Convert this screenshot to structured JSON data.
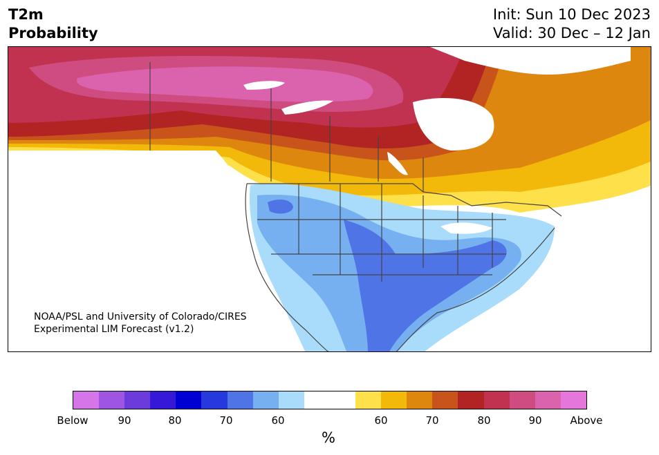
{
  "header": {
    "title_line1": "T2m",
    "title_line2": "Probability",
    "init_text": "Init: Sun 10 Dec 2023",
    "valid_text": "Valid: 30 Dec – 12 Jan"
  },
  "map": {
    "credit_line1": "NOAA/PSL and University of Colorado/CIRES",
    "credit_line2": "Experimental LIM Forecast (v1.2)",
    "land_color": "#ffffff",
    "border_color": "#444444"
  },
  "colorbar": {
    "colors": [
      "#d575e8",
      "#9e55e2",
      "#6c3bdc",
      "#3518d8",
      "#0100d2",
      "#2539dc",
      "#4f74e6",
      "#76b0f1",
      "#a9dbfa",
      "#ffffff",
      "#ffffff",
      "#fde04a",
      "#f2b80a",
      "#de870e",
      "#c8541b",
      "#b22323",
      "#c0324f",
      "#cf4c80",
      "#db62ad",
      "#e677da"
    ],
    "tick_labels": [
      "Below",
      "90",
      "80",
      "70",
      "60",
      "60",
      "70",
      "80",
      "90",
      "Above"
    ],
    "unit": "%"
  }
}
